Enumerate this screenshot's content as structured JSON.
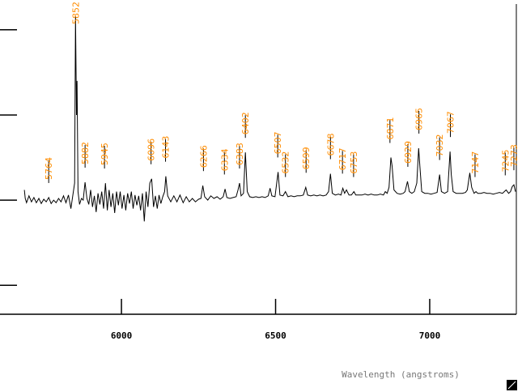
{
  "chart_data": {
    "type": "line",
    "x_label": "Wavelength (angstroms)",
    "xlim": [
      5606,
      7281
    ],
    "xticks": [
      6000,
      6500,
      7000
    ],
    "ylim": [
      -1.34,
      2.35
    ],
    "yticks": [
      -1,
      0,
      1,
      2
    ],
    "series": [
      {
        "color": "#000000",
        "x": [
          5685,
          5688,
          5692,
          5700,
          5708,
          5716,
          5724,
          5732,
          5740,
          5748,
          5756,
          5764,
          5772,
          5780,
          5788,
          5796,
          5804,
          5812,
          5820,
          5828,
          5836,
          5842,
          5848,
          5851,
          5854,
          5856,
          5859,
          5864,
          5870,
          5876,
          5882,
          5888,
          5894,
          5900,
          5906,
          5912,
          5918,
          5924,
          5930,
          5936,
          5942,
          5948,
          5954,
          5960,
          5966,
          5972,
          5978,
          5984,
          5990,
          5996,
          6002,
          6008,
          6014,
          6020,
          6026,
          6032,
          6038,
          6044,
          6050,
          6056,
          6062,
          6068,
          6074,
          6080,
          6086,
          6092,
          6098,
          6104,
          6110,
          6116,
          6122,
          6128,
          6134,
          6140,
          6144,
          6150,
          6160,
          6170,
          6180,
          6190,
          6200,
          6210,
          6220,
          6230,
          6240,
          6250,
          6258,
          6264,
          6270,
          6280,
          6290,
          6300,
          6310,
          6320,
          6330,
          6336,
          6342,
          6352,
          6362,
          6372,
          6378,
          6383,
          6388,
          6396,
          6402,
          6408,
          6416,
          6426,
          6436,
          6446,
          6456,
          6466,
          6476,
          6482,
          6488,
          6498,
          6508,
          6514,
          6524,
          6532,
          6540,
          6550,
          6560,
          6570,
          6580,
          6590,
          6598,
          6604,
          6614,
          6624,
          6634,
          6644,
          6654,
          6664,
          6672,
          6678,
          6684,
          6694,
          6704,
          6712,
          6718,
          6724,
          6730,
          6738,
          6746,
          6754,
          6760,
          6770,
          6780,
          6790,
          6800,
          6810,
          6820,
          6830,
          6840,
          6850,
          6856,
          6862,
          6868,
          6874,
          6878,
          6884,
          6894,
          6904,
          6914,
          6920,
          6928,
          6934,
          6942,
          6950,
          6958,
          6964,
          6968,
          6974,
          6984,
          6994,
          7004,
          7014,
          7024,
          7032,
          7038,
          7048,
          7058,
          7066,
          7070,
          7076,
          7086,
          7096,
          7106,
          7116,
          7122,
          7130,
          7136,
          7144,
          7150,
          7156,
          7166,
          7176,
          7186,
          7196,
          7206,
          7216,
          7226,
          7236,
          7242,
          7248,
          7256,
          7262,
          7268,
          7273,
          7278
        ],
        "values": [
          0.12,
          0.02,
          -0.03,
          0.05,
          -0.02,
          0.03,
          -0.03,
          0.02,
          -0.04,
          0.01,
          -0.02,
          0.03,
          -0.04,
          0,
          -0.03,
          0.02,
          -0.02,
          0.05,
          -0.03,
          0.06,
          -0.1,
          0.05,
          0.2,
          2.16,
          1.0,
          1.4,
          0.1,
          -0.05,
          0.02,
          0,
          0.21,
          0.02,
          -0.05,
          0.12,
          -0.08,
          0.05,
          -0.14,
          0.08,
          -0.05,
          0.1,
          -0.1,
          0.2,
          -0.12,
          0.12,
          -0.08,
          0.08,
          -0.15,
          0.1,
          -0.06,
          0.1,
          -0.1,
          0.06,
          -0.12,
          0.08,
          -0.04,
          0.1,
          -0.1,
          0.06,
          -0.06,
          0.05,
          -0.12,
          0.08,
          -0.25,
          0.1,
          -0.08,
          0.2,
          0.25,
          -0.08,
          0.05,
          -0.1,
          0.06,
          -0.04,
          0.04,
          0.1,
          0.28,
          0.05,
          -0.02,
          0.05,
          -0.02,
          0.06,
          -0.03,
          0.04,
          -0.02,
          0.02,
          -0.02,
          0.01,
          0.02,
          0.17,
          0.04,
          0,
          0.05,
          0.02,
          0.04,
          0.01,
          0.04,
          0.13,
          0.03,
          0.02,
          0.03,
          0.04,
          0.12,
          0.2,
          0.05,
          0.08,
          0.56,
          0.1,
          0.04,
          0.03,
          0.04,
          0.03,
          0.04,
          0.03,
          0.05,
          0.14,
          0.05,
          0.04,
          0.33,
          0.06,
          0.05,
          0.1,
          0.04,
          0.05,
          0.04,
          0.05,
          0.05,
          0.06,
          0.15,
          0.06,
          0.05,
          0.06,
          0.05,
          0.06,
          0.05,
          0.06,
          0.1,
          0.31,
          0.08,
          0.06,
          0.07,
          0.06,
          0.14,
          0.08,
          0.12,
          0.06,
          0.06,
          0.1,
          0.06,
          0.06,
          0.06,
          0.07,
          0.06,
          0.07,
          0.06,
          0.06,
          0.07,
          0.06,
          0.1,
          0.08,
          0.15,
          0.5,
          0.4,
          0.12,
          0.08,
          0.07,
          0.08,
          0.1,
          0.22,
          0.1,
          0.08,
          0.1,
          0.2,
          0.61,
          0.4,
          0.1,
          0.08,
          0.08,
          0.07,
          0.08,
          0.09,
          0.3,
          0.1,
          0.08,
          0.1,
          0.57,
          0.3,
          0.1,
          0.08,
          0.08,
          0.08,
          0.09,
          0.12,
          0.32,
          0.15,
          0.08,
          0.1,
          0.08,
          0.08,
          0.09,
          0.08,
          0.08,
          0.07,
          0.08,
          0.09,
          0.08,
          0.1,
          0.12,
          0.08,
          0.1,
          0.16,
          0.18,
          0.1
        ]
      }
    ],
    "annotations": [
      5764,
      5852,
      5882,
      5945,
      6096,
      6143,
      6266,
      6334,
      6383,
      6402,
      6507,
      6532,
      6599,
      6678,
      6717,
      6753,
      6871,
      6929,
      6965,
      7032,
      7067,
      7147,
      7245,
      7273
    ],
    "annotation_color": "#ff8c00"
  }
}
